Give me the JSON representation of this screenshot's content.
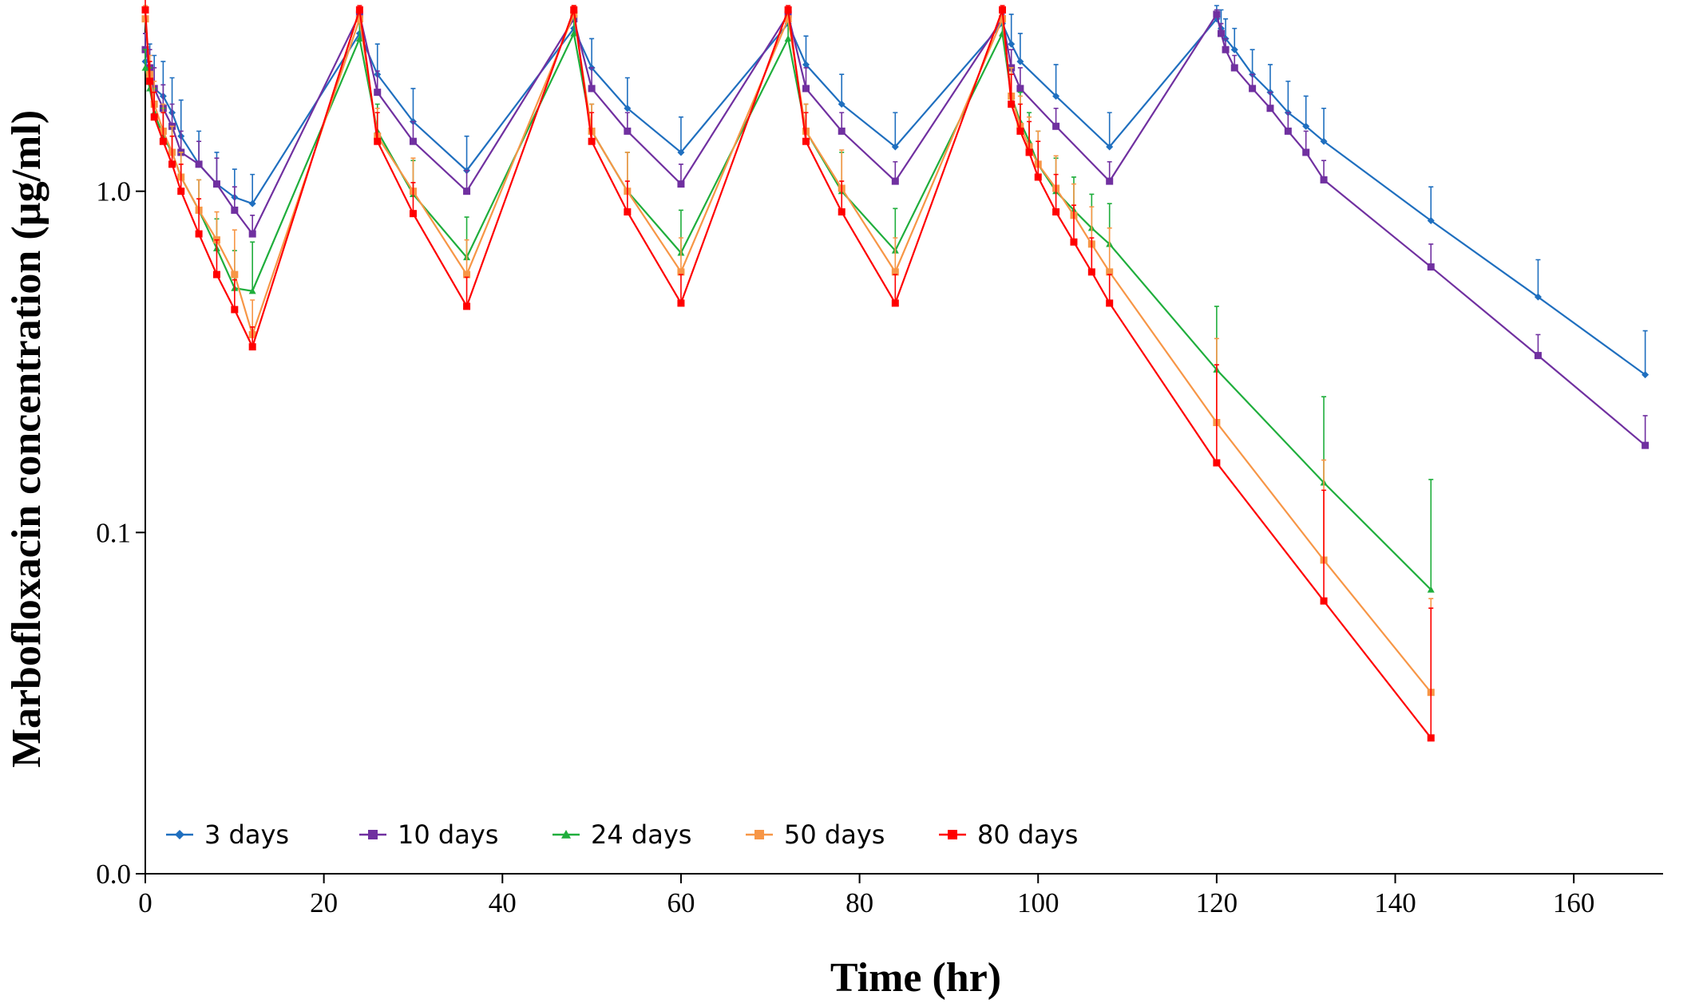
{
  "chart_data": {
    "type": "line",
    "xlabel": "Time (hr)",
    "ylabel": "Marbofloxacin concentration (µg/ml)",
    "xlim": [
      0,
      170
    ],
    "xticks": [
      0,
      20,
      40,
      60,
      80,
      100,
      120,
      140,
      160
    ],
    "ylim": [
      0.01,
      3.5
    ],
    "yticks": [
      {
        "value": 0.01,
        "label": "0.0"
      },
      {
        "value": 0.1,
        "label": "0.1"
      },
      {
        "value": 1,
        "label": "1.0"
      }
    ],
    "log_y": true,
    "grid": false,
    "legend": "lower left",
    "series": [
      {
        "name": "3 days",
        "color": "#1f6fbf",
        "marker": "diamond",
        "x": [
          0,
          0.5,
          1,
          2,
          3,
          4,
          6,
          8,
          10,
          12,
          24,
          26,
          30,
          36,
          48,
          50,
          54,
          60,
          72,
          74,
          78,
          84,
          96,
          97,
          98,
          102,
          108,
          120,
          120.5,
          121,
          122,
          124,
          126,
          128,
          130,
          132,
          144,
          156,
          168
        ],
        "values": [
          2.4,
          2.2,
          2.0,
          1.9,
          1.7,
          1.45,
          1.2,
          1.05,
          0.96,
          0.92,
          2.9,
          2.2,
          1.6,
          1.15,
          3.0,
          2.3,
          1.75,
          1.3,
          3.1,
          2.35,
          1.8,
          1.35,
          3.1,
          2.7,
          2.4,
          1.9,
          1.35,
          3.2,
          3.0,
          2.8,
          2.6,
          2.2,
          1.95,
          1.7,
          1.55,
          1.4,
          0.82,
          0.49,
          0.29
        ],
        "errors": [
          0.5,
          0.5,
          0.5,
          0.5,
          0.45,
          0.4,
          0.3,
          0.25,
          0.2,
          0.2,
          0.3,
          0.5,
          0.4,
          0.3,
          0.3,
          0.5,
          0.4,
          0.35,
          0.3,
          0.5,
          0.4,
          0.35,
          0.3,
          0.6,
          0.5,
          0.45,
          0.35,
          0.3,
          0.4,
          0.4,
          0.4,
          0.4,
          0.4,
          0.4,
          0.35,
          0.35,
          0.21,
          0.14,
          0.1
        ]
      },
      {
        "name": "10 days",
        "color": "#7030a0",
        "marker": "square",
        "x": [
          0,
          0.5,
          1,
          2,
          3,
          4,
          6,
          8,
          10,
          12,
          24,
          26,
          30,
          36,
          48,
          50,
          54,
          60,
          72,
          74,
          78,
          84,
          96,
          97,
          98,
          102,
          108,
          120,
          120.5,
          121,
          122,
          124,
          126,
          128,
          130,
          132,
          144,
          156,
          168
        ],
        "values": [
          2.6,
          2.3,
          2.0,
          1.75,
          1.55,
          1.3,
          1.2,
          1.05,
          0.88,
          0.75,
          3.3,
          1.95,
          1.4,
          1.0,
          3.2,
          2.0,
          1.5,
          1.05,
          3.3,
          2.0,
          1.5,
          1.07,
          3.2,
          2.3,
          2.0,
          1.55,
          1.07,
          3.3,
          2.9,
          2.6,
          2.3,
          2.0,
          1.75,
          1.5,
          1.3,
          1.08,
          0.6,
          0.33,
          0.18
        ],
        "errors": [
          0.3,
          0.3,
          0.3,
          0.3,
          0.25,
          0.2,
          0.2,
          0.2,
          0.15,
          0.1,
          0.1,
          0.3,
          0.2,
          0.15,
          0.1,
          0.3,
          0.2,
          0.15,
          0.1,
          0.3,
          0.2,
          0.15,
          0.1,
          0.3,
          0.3,
          0.2,
          0.15,
          0.1,
          0.2,
          0.2,
          0.2,
          0.2,
          0.2,
          0.2,
          0.2,
          0.15,
          0.1,
          0.05,
          0.04
        ]
      },
      {
        "name": "24 days",
        "color": "#1fae3c",
        "marker": "triangle",
        "x": [
          0,
          0.5,
          1,
          2,
          3,
          4,
          6,
          8,
          10,
          12,
          24,
          26,
          30,
          36,
          48,
          50,
          54,
          60,
          72,
          74,
          78,
          84,
          96,
          97,
          98,
          99,
          100,
          102,
          104,
          106,
          108,
          120,
          132,
          144
        ],
        "values": [
          2.3,
          2.0,
          1.7,
          1.45,
          1.3,
          1.1,
          0.88,
          0.68,
          0.52,
          0.51,
          2.8,
          1.5,
          0.98,
          0.64,
          2.9,
          1.5,
          1.0,
          0.66,
          2.8,
          1.5,
          1.0,
          0.67,
          2.9,
          1.9,
          1.6,
          1.4,
          1.2,
          1.0,
          0.88,
          0.78,
          0.7,
          0.3,
          0.14,
          0.068
        ],
        "errors": [
          0.3,
          0.3,
          0.3,
          0.3,
          0.25,
          0.2,
          0.2,
          0.15,
          0.15,
          0.2,
          0.3,
          0.3,
          0.25,
          0.2,
          0.3,
          0.3,
          0.3,
          0.22,
          0.3,
          0.3,
          0.3,
          0.22,
          0.3,
          0.4,
          0.35,
          0.3,
          0.3,
          0.25,
          0.22,
          0.2,
          0.22,
          0.16,
          0.11,
          0.075
        ]
      },
      {
        "name": "50 days",
        "color": "#f79646",
        "marker": "square",
        "x": [
          0,
          0.5,
          1,
          2,
          3,
          4,
          6,
          8,
          10,
          12,
          24,
          26,
          30,
          36,
          48,
          50,
          54,
          60,
          72,
          74,
          78,
          84,
          96,
          97,
          98,
          99,
          100,
          102,
          104,
          106,
          108,
          120,
          132,
          144
        ],
        "values": [
          3.2,
          2.2,
          1.8,
          1.5,
          1.3,
          1.1,
          0.88,
          0.72,
          0.57,
          0.38,
          3.2,
          1.45,
          1.0,
          0.57,
          3.3,
          1.5,
          1.0,
          0.58,
          3.2,
          1.5,
          1.02,
          0.58,
          3.2,
          1.9,
          1.55,
          1.35,
          1.2,
          1.02,
          0.85,
          0.7,
          0.58,
          0.21,
          0.083,
          0.034
        ],
        "errors": [
          0.3,
          0.3,
          0.3,
          0.3,
          0.25,
          0.2,
          0.2,
          0.15,
          0.2,
          0.1,
          0.2,
          0.3,
          0.25,
          0.15,
          0.2,
          0.3,
          0.3,
          0.15,
          0.2,
          0.3,
          0.3,
          0.15,
          0.2,
          0.4,
          0.35,
          0.3,
          0.3,
          0.25,
          0.2,
          0.2,
          0.2,
          0.16,
          0.08,
          0.03
        ]
      },
      {
        "name": "80 days",
        "color": "#ff0000",
        "marker": "square",
        "x": [
          0,
          0.5,
          1,
          2,
          3,
          4,
          6,
          8,
          10,
          12,
          24,
          26,
          30,
          36,
          48,
          50,
          54,
          60,
          72,
          74,
          78,
          84,
          96,
          97,
          98,
          99,
          100,
          102,
          104,
          106,
          108,
          120,
          132,
          144
        ],
        "values": [
          3.4,
          2.1,
          1.65,
          1.4,
          1.2,
          1.0,
          0.75,
          0.57,
          0.45,
          0.35,
          3.4,
          1.4,
          0.86,
          0.46,
          3.4,
          1.4,
          0.87,
          0.47,
          3.4,
          1.4,
          0.87,
          0.47,
          3.4,
          1.8,
          1.5,
          1.3,
          1.1,
          0.87,
          0.71,
          0.58,
          0.47,
          0.16,
          0.063,
          0.025
        ],
        "errors": [
          0.3,
          0.3,
          0.3,
          0.3,
          0.25,
          0.2,
          0.2,
          0.15,
          0.1,
          0.05,
          0.1,
          0.3,
          0.2,
          0.1,
          0.1,
          0.3,
          0.2,
          0.1,
          0.1,
          0.3,
          0.2,
          0.1,
          0.1,
          0.4,
          0.3,
          0.3,
          0.3,
          0.25,
          0.2,
          0.15,
          0.1,
          0.15,
          0.07,
          0.035
        ]
      }
    ]
  }
}
